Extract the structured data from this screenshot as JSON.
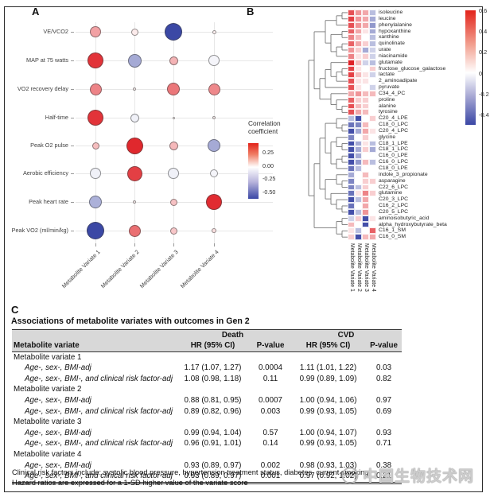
{
  "figure": {
    "panel_a_label": "A",
    "panel_b_label": "B",
    "panel_c_label": "C"
  },
  "watermark": {
    "text": "中国生物技术网",
    "logo": "swirl-globe-icon"
  },
  "chart_data": [
    {
      "type": "scatter",
      "subtype": "bubble-correlation-matrix",
      "panel": "A",
      "rows": [
        "VE/VCO2",
        "MAP at 75 watts",
        "VO2 recovery delay",
        "Half-time",
        "Peak O2 pulse",
        "Aerobic efficiency",
        "Peak heart rate",
        "Peak VO2 (ml/min/kg)"
      ],
      "columns": [
        "Metabolite Variate 1",
        "Metabolite Variate 2",
        "Metabolite Variate 3",
        "Metabolite Variate 4"
      ],
      "values": [
        [
          0.18,
          0.03,
          -0.52,
          0.02
        ],
        [
          0.45,
          -0.22,
          0.14,
          -0.02
        ],
        [
          0.25,
          0.02,
          0.28,
          0.24
        ],
        [
          0.45,
          -0.03,
          0.01,
          0.02
        ],
        [
          0.12,
          0.48,
          0.13,
          -0.22
        ],
        [
          -0.03,
          0.42,
          -0.03,
          -0.02
        ],
        [
          -0.2,
          0.02,
          0.11,
          0.47
        ],
        [
          -0.52,
          0.3,
          0.1,
          0.05
        ]
      ],
      "bubble_radius_px": [
        [
          7,
          4.5,
          11,
          2.5
        ],
        [
          10,
          8.5,
          5.5,
          7
        ],
        [
          7.5,
          2,
          8,
          7.5
        ],
        [
          10,
          5.5,
          1.5,
          2
        ],
        [
          4.5,
          10.5,
          5.5,
          8
        ],
        [
          7,
          9.5,
          7,
          5
        ],
        [
          8,
          2,
          4.5,
          10
        ],
        [
          11,
          7.5,
          4.5,
          3
        ]
      ],
      "legend": {
        "title": "Correlation coefficient",
        "ticks": [
          "0.25",
          "0.00",
          "-0.25",
          "-0.50"
        ],
        "max_color": "#e2231a",
        "mid_color": "#ffffff",
        "min_color": "#3a47a5"
      },
      "grid": true
    },
    {
      "type": "heatmap",
      "panel": "B",
      "rows": [
        "isoleucine",
        "leucine",
        "phenylalanine",
        "hypoxanthine",
        "xanthine",
        "quinolinate",
        "urate",
        "niacinamide",
        "glutamate",
        "fructose_glucose_galactose",
        "lactate",
        "2_aminoadipate",
        "pyruvate",
        "C34_4_PC",
        "proline",
        "alanine",
        "tyrosine",
        "C20_4_LPE",
        "C18_0_LPC",
        "C20_4_LPC",
        "glycine",
        "C18_1_LPE",
        "C18_1_LPC",
        "C16_0_LPE",
        "C16_0_LPC",
        "C18_0_LPE",
        "indole_3_propionate",
        "asparagine",
        "C22_6_LPC",
        "glutamine",
        "C20_3_LPC",
        "C16_2_LPC",
        "C20_5_LPC",
        "aminoisobutyric_acid",
        "alpha_hydroxybutyrate_beta",
        "C16_1_SM",
        "C16_0_SM"
      ],
      "columns": [
        "Metabolite Variate 1",
        "Metabolite Variate 2",
        "Metabolite Variate 3",
        "Metabolite Variate 4"
      ],
      "values": [
        [
          0.45,
          0.25,
          0.2,
          -0.15
        ],
        [
          0.5,
          0.25,
          0.2,
          -0.2
        ],
        [
          0.45,
          0.25,
          0.2,
          -0.25
        ],
        [
          0.4,
          0.2,
          0.05,
          -0.2
        ],
        [
          0.3,
          0.15,
          0.0,
          -0.15
        ],
        [
          0.4,
          0.2,
          0.1,
          -0.15
        ],
        [
          0.25,
          0.1,
          -0.2,
          -0.1
        ],
        [
          0.3,
          0.05,
          0.1,
          -0.1
        ],
        [
          0.6,
          0.15,
          -0.1,
          -0.15
        ],
        [
          0.5,
          0.05,
          0.0,
          0.1
        ],
        [
          0.5,
          0.15,
          0.05,
          -0.1
        ],
        [
          0.45,
          0.05,
          0.05,
          0.0
        ],
        [
          0.45,
          0.05,
          0.0,
          -0.1
        ],
        [
          0.2,
          0.25,
          0.15,
          0.15
        ],
        [
          0.4,
          0.1,
          0.1,
          0.0
        ],
        [
          0.45,
          0.15,
          0.1,
          0.0
        ],
        [
          0.45,
          0.2,
          0.15,
          0.0
        ],
        [
          -0.15,
          -0.45,
          0.0,
          0.1
        ],
        [
          -0.35,
          -0.3,
          0.15,
          0.0
        ],
        [
          -0.45,
          -0.2,
          0.2,
          0.05
        ],
        [
          -0.3,
          0.0,
          0.1,
          0.0
        ],
        [
          -0.45,
          -0.2,
          0.05,
          -0.15
        ],
        [
          -0.45,
          -0.2,
          0.1,
          -0.2
        ],
        [
          -0.45,
          -0.2,
          0.0,
          0.0
        ],
        [
          -0.45,
          -0.25,
          0.15,
          -0.15
        ],
        [
          -0.35,
          -0.15,
          0.0,
          0.0
        ],
        [
          -0.2,
          0.0,
          0.15,
          0.0
        ],
        [
          -0.3,
          0.0,
          0.1,
          0.1
        ],
        [
          -0.3,
          -0.15,
          0.1,
          0.0
        ],
        [
          -0.35,
          0.05,
          0.3,
          0.1
        ],
        [
          -0.45,
          -0.15,
          0.2,
          0.0
        ],
        [
          -0.35,
          0.0,
          0.2,
          0.0
        ],
        [
          -0.45,
          -0.15,
          0.25,
          0.0
        ],
        [
          -0.1,
          0.1,
          -0.45,
          0.05
        ],
        [
          0.15,
          0.0,
          -0.45,
          0.0
        ],
        [
          0.05,
          -0.15,
          0.0,
          0.4
        ],
        [
          0.1,
          -0.45,
          0.15,
          0.2
        ]
      ],
      "colorbar_ticks": [
        "0.6",
        "0.4",
        "0.2",
        "0",
        "-0.2",
        "-0.4"
      ],
      "value_range": [
        -0.5,
        0.6
      ],
      "row_dendrogram": true,
      "legend_position": "right"
    },
    {
      "type": "table",
      "panel": "C",
      "title": "Associations of metabolite variates with outcomes in Gen 2",
      "group_headers": [
        {
          "label": "Death",
          "span": 2
        },
        {
          "label": "CVD",
          "span": 2
        }
      ],
      "columns": [
        "Metabolite variate",
        "HR (95% CI)",
        "P-value",
        "HR (95% CI)",
        "P-value"
      ],
      "rows": [
        {
          "label": "Metabolite variate 1",
          "kind": "group",
          "values": [
            "",
            "",
            "",
            ""
          ]
        },
        {
          "label": "Age-, sex-, BMI-adj",
          "kind": "model",
          "values": [
            "1.17 (1.07, 1.27)",
            "0.0004",
            "1.11 (1.01, 1.22)",
            "0.03"
          ]
        },
        {
          "label": "Age-, sex-, BMI-, and clinical risk factor-adj",
          "kind": "model",
          "values": [
            "1.08 (0.98, 1.18)",
            "0.11",
            "0.99 (0.89, 1.09)",
            "0.82"
          ]
        },
        {
          "label": "Metabolite variate 2",
          "kind": "group",
          "values": [
            "",
            "",
            "",
            ""
          ]
        },
        {
          "label": "Age-, sex-, BMI-adj",
          "kind": "model",
          "values": [
            "0.88 (0.81, 0.95)",
            "0.0007",
            "1.00 (0.94, 1.06)",
            "0.97"
          ]
        },
        {
          "label": "Age-, sex-, BMI-, and clinical risk factor-adj",
          "kind": "model",
          "values": [
            "0.89 (0.82, 0.96)",
            "0.003",
            "0.99 (0.93, 1.05)",
            "0.69"
          ]
        },
        {
          "label": "Metabolite variate 3",
          "kind": "group",
          "values": [
            "",
            "",
            "",
            ""
          ]
        },
        {
          "label": "Age-, sex-, BMI-adj",
          "kind": "model",
          "values": [
            "0.99 (0.94, 1.04)",
            "0.57",
            "1.00 (0.94, 1.07)",
            "0.93"
          ]
        },
        {
          "label": "Age-, sex-, BMI-, and clinical risk factor-adj",
          "kind": "model",
          "values": [
            "0.96 (0.91, 1.01)",
            "0.14",
            "0.99 (0.93, 1.05)",
            "0.71"
          ]
        },
        {
          "label": "Metabolite variate 4",
          "kind": "group",
          "values": [
            "",
            "",
            "",
            ""
          ]
        },
        {
          "label": "Age-, sex-, BMI-adj",
          "kind": "model",
          "values": [
            "0.93 (0.89, 0.97)",
            "0.002",
            "0.98 (0.93, 1.03)",
            "0.38"
          ]
        },
        {
          "label": "Age-, sex-, BMI-, and clinical risk factor-adj",
          "kind": "model",
          "values": [
            "0.93 (0.89, 0.97)",
            "0.001",
            "0.97 (0.92, 1.02)",
            "0.21"
          ]
        }
      ],
      "footnotes": [
        "Clinical risk factors include: systolic blood pressure, hypertension treatment status, diabetes, current smoking",
        "Hazard ratios are expressed for a 1-SD higher value of the variate score"
      ]
    }
  ]
}
